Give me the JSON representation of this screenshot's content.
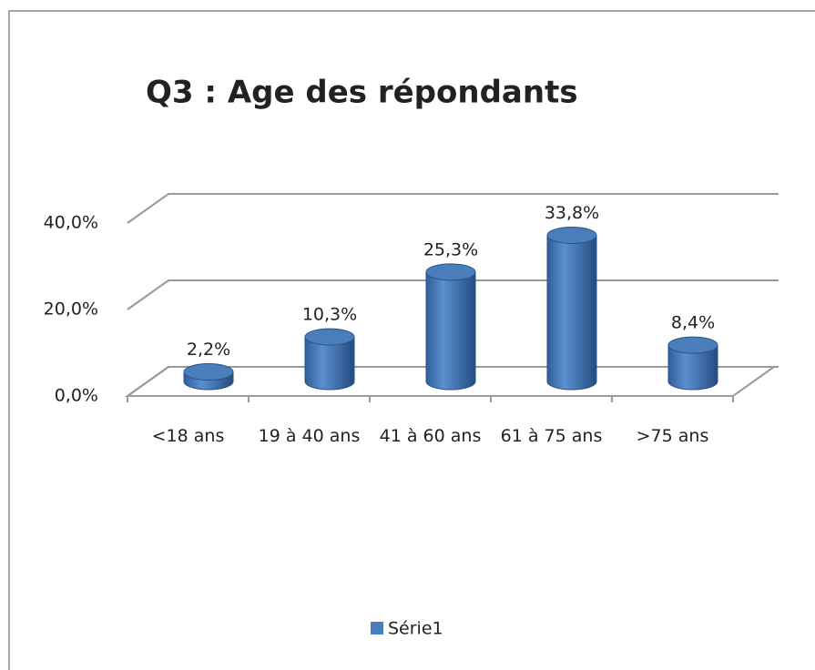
{
  "chart_data": {
    "type": "bar3d",
    "title": "Q3 : Age des répondants",
    "categories": [
      "<18 ans",
      "19 à 40 ans",
      "41 à 60 ans",
      "61 à 75 ans",
      ">75 ans"
    ],
    "series": [
      {
        "name": "Série1",
        "color": "#4a7ebb",
        "values": [
          2.2,
          10.3,
          25.3,
          33.8,
          8.4
        ],
        "value_labels": [
          "2,2%",
          "10,3%",
          "25,3%",
          "33,8%",
          "8,4%"
        ]
      }
    ],
    "ylim": [
      0,
      40
    ],
    "yticks": [
      {
        "value": 0,
        "label": "0,0%"
      },
      {
        "value": 20,
        "label": "20,0%"
      },
      {
        "value": 40,
        "label": "40,0%"
      }
    ],
    "grid": true,
    "legend": "bottom"
  }
}
